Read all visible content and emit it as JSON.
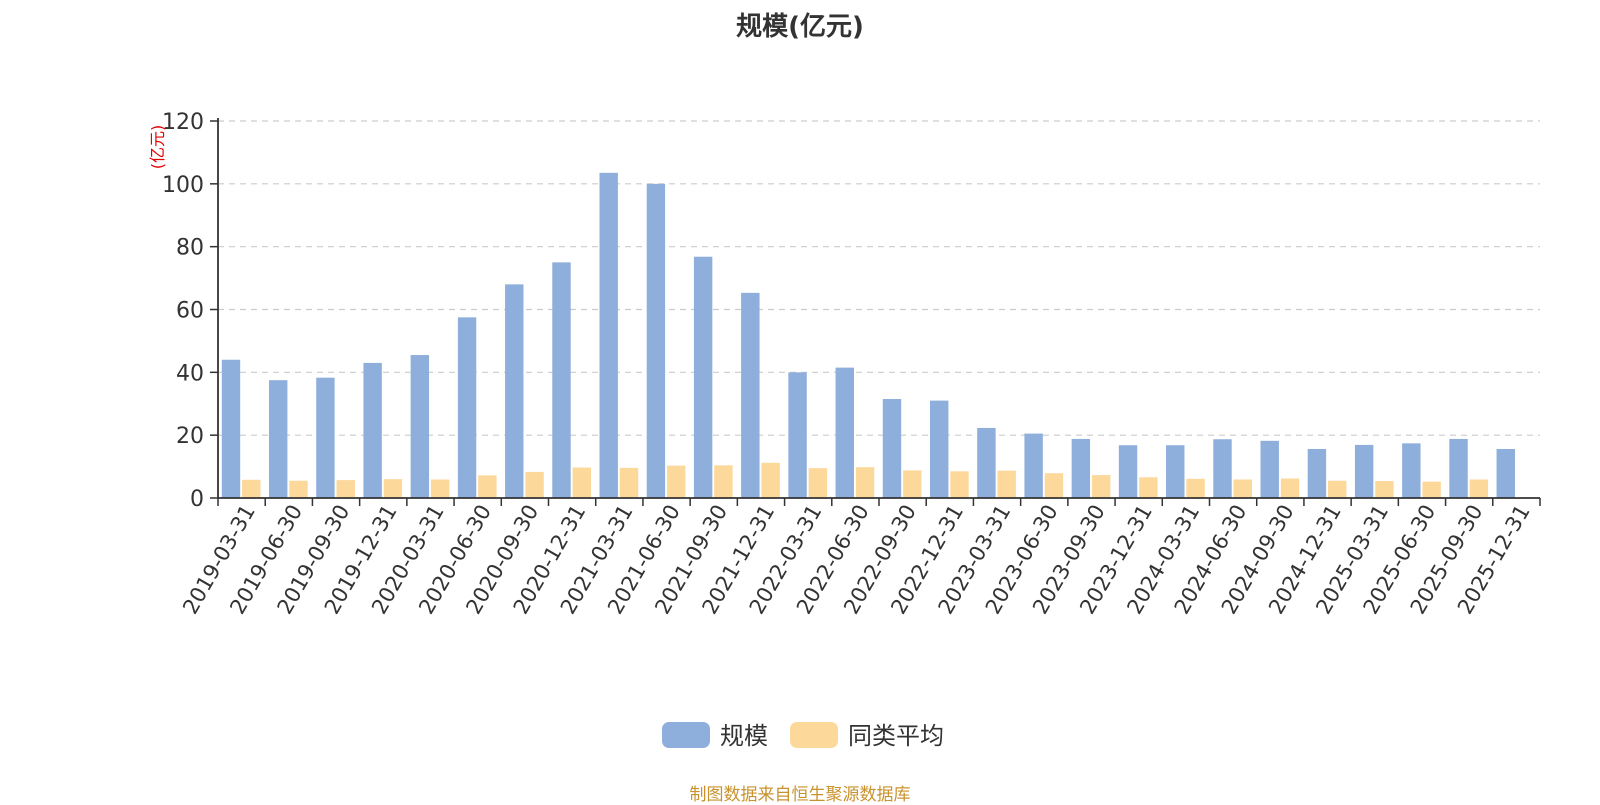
{
  "chart_data": {
    "type": "bar",
    "title": "规模(亿元)",
    "ylabel": "(亿元)",
    "ylim": [
      0,
      120
    ],
    "yticks": [
      0,
      20,
      40,
      60,
      80,
      100,
      120
    ],
    "grid": true,
    "legend_position": "bottom",
    "categories": [
      "2019-03-31",
      "2019-06-30",
      "2019-09-30",
      "2019-12-31",
      "2020-03-31",
      "2020-06-30",
      "2020-09-30",
      "2020-12-31",
      "2021-03-31",
      "2021-06-30",
      "2021-09-30",
      "2021-12-31",
      "2022-03-31",
      "2022-06-30",
      "2022-09-30",
      "2022-12-31",
      "2023-03-31",
      "2023-06-30",
      "2023-09-30",
      "2023-12-31",
      "2024-03-31",
      "2024-06-30",
      "2024-09-30",
      "2024-12-31",
      "2025-03-31",
      "2025-06-30",
      "2025-09-30",
      "2025-12-31"
    ],
    "series": [
      {
        "name": "规模",
        "color": "#8eaedb",
        "values": [
          44.0,
          37.5,
          38.3,
          43.0,
          45.5,
          57.5,
          68.0,
          75.0,
          103.5,
          100.0,
          76.8,
          65.3,
          40.0,
          41.5,
          31.5,
          31.0,
          22.3,
          20.5,
          18.8,
          16.8,
          16.8,
          18.7,
          18.2,
          15.6,
          16.9,
          17.4,
          18.8,
          15.6
        ]
      },
      {
        "name": "同类平均",
        "color": "#fdd89b",
        "values": [
          5.8,
          5.5,
          5.7,
          6.0,
          5.9,
          7.2,
          8.3,
          9.7,
          9.6,
          10.3,
          10.4,
          11.2,
          9.5,
          9.8,
          8.8,
          8.5,
          8.7,
          7.9,
          7.3,
          6.6,
          6.1,
          5.9,
          6.2,
          5.5,
          5.4,
          5.2,
          5.9,
          null
        ]
      }
    ]
  },
  "source_text": "制图数据来自恒生聚源数据库"
}
